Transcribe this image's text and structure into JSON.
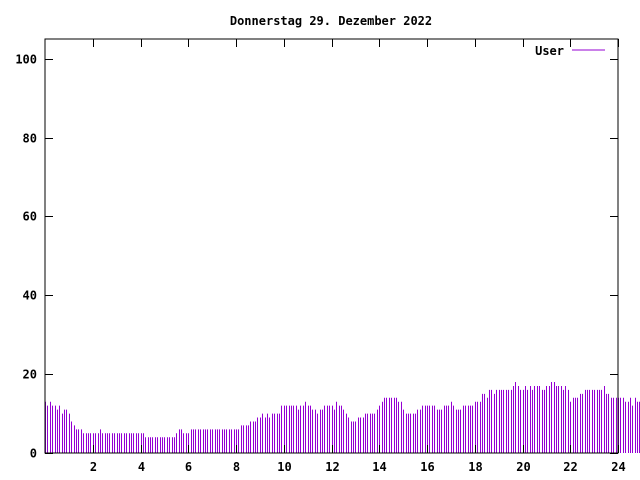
{
  "chart_data": {
    "type": "bar",
    "title": "Donnerstag 29. Dezember 2022",
    "xlabel": "",
    "ylabel": "",
    "xlim": [
      0,
      24
    ],
    "ylim": [
      0,
      105
    ],
    "xticks": [
      2,
      4,
      6,
      8,
      10,
      12,
      14,
      16,
      18,
      20,
      22,
      24
    ],
    "yticks": [
      0,
      20,
      40,
      60,
      80,
      100
    ],
    "grid": false,
    "legend": "top-right",
    "series": [
      {
        "name": "User",
        "color": "#9400d3",
        "interval_hours": 0.1,
        "values": [
          13,
          12,
          13,
          12,
          12,
          11,
          12,
          10,
          11,
          11,
          10,
          8,
          7,
          6,
          6,
          6,
          5,
          5,
          5,
          5,
          5,
          5,
          5,
          6,
          5,
          5,
          5,
          5,
          5,
          5,
          5,
          5,
          5,
          5,
          5,
          5,
          5,
          5,
          5,
          5,
          5,
          5,
          4,
          4,
          4,
          4,
          4,
          4,
          4,
          4,
          4,
          4,
          4,
          4,
          4,
          5,
          6,
          6,
          5,
          5,
          5,
          6,
          6,
          6,
          6,
          6,
          6,
          6,
          6,
          6,
          6,
          6,
          6,
          6,
          6,
          6,
          6,
          6,
          6,
          6,
          6,
          6,
          7,
          7,
          7,
          7,
          8,
          8,
          8,
          9,
          9,
          10,
          9,
          10,
          9,
          10,
          10,
          10,
          10,
          12,
          12,
          12,
          12,
          12,
          12,
          12,
          11,
          12,
          12,
          13,
          12,
          12,
          11,
          11,
          10,
          11,
          11,
          12,
          12,
          12,
          12,
          11,
          13,
          12,
          12,
          11,
          10,
          9,
          8,
          8,
          8,
          9,
          9,
          9,
          10,
          10,
          10,
          10,
          10,
          11,
          12,
          13,
          14,
          14,
          14,
          14,
          14,
          14,
          13,
          13,
          11,
          10,
          10,
          10,
          10,
          10,
          11,
          11,
          12,
          12,
          12,
          12,
          12,
          12,
          11,
          11,
          11,
          12,
          12,
          12,
          13,
          12,
          11,
          11,
          11,
          12,
          12,
          12,
          12,
          12,
          13,
          13,
          13,
          15,
          15,
          14,
          16,
          16,
          15,
          16,
          16,
          16,
          16,
          16,
          16,
          16,
          17,
          18,
          17,
          16,
          16,
          17,
          16,
          17,
          16,
          17,
          17,
          17,
          16,
          16,
          17,
          17,
          18,
          18,
          17,
          17,
          17,
          16,
          17,
          16,
          13,
          14,
          14,
          14,
          15,
          15,
          16,
          16,
          16,
          16,
          16,
          16,
          16,
          16,
          17,
          15,
          15,
          14,
          14,
          14,
          14,
          14,
          14,
          13,
          13,
          14,
          12,
          14,
          13,
          13
        ]
      }
    ]
  }
}
